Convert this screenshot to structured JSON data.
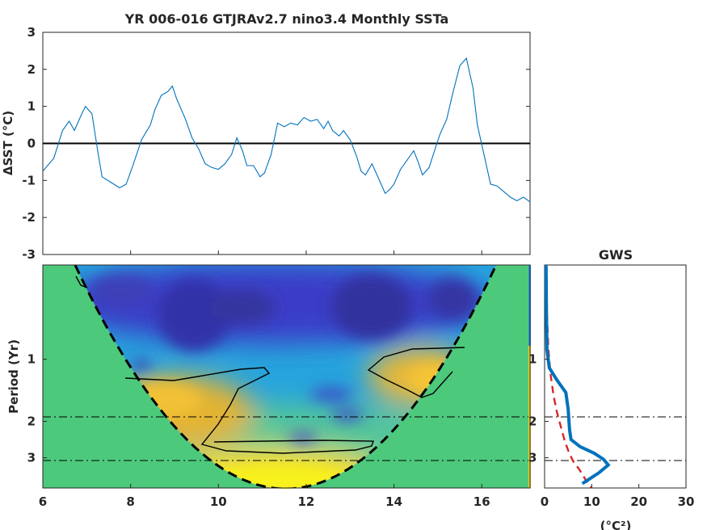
{
  "chart_data": [
    {
      "type": "line",
      "title": "YR 006-016 GTJRAv2.7 nino3.4 Monthly SSTa",
      "ylabel": "ΔSST (°C)",
      "xlim": [
        6,
        17.1
      ],
      "ylim": [
        -3,
        3
      ],
      "yticks": [
        "3",
        "2",
        "1",
        "0",
        "-1",
        "-2",
        "-3"
      ],
      "zero_line": true,
      "grid": false,
      "series": [
        {
          "color": "#0072bd",
          "x": [
            6.0,
            6.25,
            6.45,
            6.6,
            6.72,
            6.85,
            6.97,
            7.12,
            7.25,
            7.35,
            7.55,
            7.75,
            7.9,
            8.05,
            8.25,
            8.45,
            8.55,
            8.7,
            8.85,
            8.95,
            9.05,
            9.25,
            9.4,
            9.55,
            9.7,
            9.85,
            10.0,
            10.15,
            10.3,
            10.42,
            10.55,
            10.65,
            10.8,
            10.95,
            11.05,
            11.2,
            11.35,
            11.5,
            11.65,
            11.8,
            11.95,
            12.1,
            12.25,
            12.4,
            12.5,
            12.6,
            12.75,
            12.85,
            13.0,
            13.15,
            13.25,
            13.35,
            13.5,
            13.65,
            13.8,
            13.9,
            14.0,
            14.15,
            14.3,
            14.45,
            14.55,
            14.65,
            14.8,
            14.95,
            15.05,
            15.2,
            15.35,
            15.5,
            15.65,
            15.8,
            15.9,
            16.05,
            16.2,
            16.35,
            16.5,
            16.65,
            16.8,
            16.95,
            17.1
          ],
          "y": [
            -0.75,
            -0.4,
            0.35,
            0.6,
            0.35,
            0.7,
            1.0,
            0.8,
            -0.2,
            -0.9,
            -1.05,
            -1.2,
            -1.1,
            -0.6,
            0.1,
            0.5,
            0.9,
            1.3,
            1.4,
            1.55,
            1.2,
            0.65,
            0.15,
            -0.15,
            -0.55,
            -0.65,
            -0.7,
            -0.55,
            -0.3,
            0.15,
            -0.2,
            -0.6,
            -0.6,
            -0.9,
            -0.8,
            -0.3,
            0.55,
            0.45,
            0.55,
            0.5,
            0.7,
            0.6,
            0.65,
            0.4,
            0.6,
            0.35,
            0.2,
            0.35,
            0.1,
            -0.35,
            -0.75,
            -0.85,
            -0.55,
            -0.95,
            -1.35,
            -1.25,
            -1.1,
            -0.7,
            -0.45,
            -0.2,
            -0.5,
            -0.85,
            -0.65,
            -0.1,
            0.25,
            0.65,
            1.4,
            2.1,
            2.3,
            1.5,
            0.5,
            -0.3,
            -1.1,
            -1.15,
            -1.3,
            -1.45,
            -1.55,
            -1.45,
            -1.58
          ]
        }
      ]
    },
    {
      "type": "heatmap",
      "ylabel": "Period (Yr)",
      "xticks": [
        "6",
        "8",
        "10",
        "12",
        "14",
        "16"
      ],
      "xlim": [
        6,
        17.1
      ],
      "yticks": [
        "1",
        "2",
        "3"
      ],
      "ylim_period": [
        0.35,
        4.2
      ],
      "y_log_scale": true,
      "colormap": "parula",
      "cone_of_influence": true,
      "reference_lines_period": [
        2,
        3
      ],
      "high_power_regions": [
        {
          "x": 9.0,
          "period": 2.2,
          "level": "high"
        },
        {
          "x": 14.6,
          "period": 1.5,
          "level": "high"
        },
        {
          "x": 11.6,
          "period": 3.4,
          "level": "very high"
        }
      ],
      "low_power_regions": [
        {
          "x": 8.5,
          "period": 0.55
        },
        {
          "x": 12.5,
          "period": 0.6
        },
        {
          "x": 15.0,
          "period": 0.7
        }
      ]
    },
    {
      "type": "line",
      "title": "GWS",
      "xlabel": "(°C²)",
      "xlim": [
        0,
        30
      ],
      "xticks": [
        "0",
        "10",
        "20",
        "30"
      ],
      "yticks": [
        "1",
        "2",
        "3"
      ],
      "reference_lines_period": [
        2,
        3
      ],
      "series": [
        {
          "color": "#0072bd",
          "style": "solid",
          "period": [
            0.35,
            0.6,
            0.9,
            1.1,
            1.25,
            1.45,
            1.75,
            2.2,
            2.45,
            2.65,
            2.85,
            3.05,
            3.25,
            3.55,
            4.0
          ],
          "power": [
            0.3,
            0.4,
            0.5,
            1.0,
            2.5,
            4.5,
            5.0,
            5.3,
            5.6,
            7.5,
            10.5,
            12.5,
            13.5,
            11.5,
            8.0
          ]
        },
        {
          "color": "#d62728",
          "style": "dashed",
          "period": [
            0.35,
            0.6,
            0.9,
            1.2,
            1.5,
            1.8,
            2.1,
            2.5,
            2.8,
            3.1,
            3.4,
            3.8,
            4.2
          ],
          "power": [
            0.4,
            0.5,
            0.8,
            1.3,
            1.9,
            2.6,
            3.4,
            4.3,
            5.1,
            6.0,
            7.3,
            8.6,
            10.0
          ]
        }
      ]
    }
  ]
}
